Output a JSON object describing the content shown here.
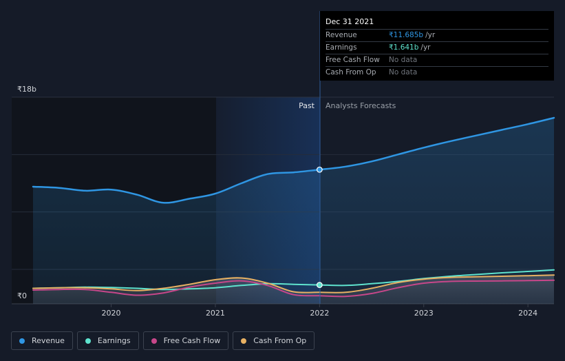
{
  "chart_data": {
    "type": "line",
    "y_unit_labels": {
      "top": "₹18b",
      "bottom": "₹0"
    },
    "ylim": [
      0,
      18
    ],
    "xlim": [
      2019.25,
      2024.25
    ],
    "x_ticks": [
      {
        "value": 2020,
        "label": "2020"
      },
      {
        "value": 2021,
        "label": "2021"
      },
      {
        "value": 2022,
        "label": "2022"
      },
      {
        "value": 2023,
        "label": "2023"
      },
      {
        "value": 2024,
        "label": "2024"
      }
    ],
    "divider_x": 2022.0,
    "past_label": "Past",
    "forecast_label": "Analysts Forecasts",
    "series": [
      {
        "name": "Revenue",
        "color": "#2f96e3",
        "area": true,
        "points": [
          [
            2019.25,
            10.2
          ],
          [
            2019.5,
            10.1
          ],
          [
            2019.75,
            9.85
          ],
          [
            2020.0,
            9.95
          ],
          [
            2020.25,
            9.5
          ],
          [
            2020.5,
            8.8
          ],
          [
            2020.75,
            9.15
          ],
          [
            2021.0,
            9.6
          ],
          [
            2021.25,
            10.5
          ],
          [
            2021.5,
            11.3
          ],
          [
            2021.75,
            11.45
          ],
          [
            2022.0,
            11.685
          ],
          [
            2022.25,
            11.95
          ],
          [
            2022.5,
            12.4
          ],
          [
            2022.75,
            13.0
          ],
          [
            2023.0,
            13.6
          ],
          [
            2023.25,
            14.15
          ],
          [
            2023.5,
            14.65
          ],
          [
            2023.75,
            15.15
          ],
          [
            2024.0,
            15.65
          ],
          [
            2024.25,
            16.2
          ]
        ]
      },
      {
        "name": "Earnings",
        "color": "#5fe3ce",
        "area": false,
        "points": [
          [
            2019.25,
            1.35
          ],
          [
            2019.5,
            1.4
          ],
          [
            2019.75,
            1.45
          ],
          [
            2020.0,
            1.42
          ],
          [
            2020.25,
            1.35
          ],
          [
            2020.5,
            1.25
          ],
          [
            2020.75,
            1.3
          ],
          [
            2021.0,
            1.4
          ],
          [
            2021.25,
            1.6
          ],
          [
            2021.5,
            1.75
          ],
          [
            2021.75,
            1.7
          ],
          [
            2022.0,
            1.641
          ],
          [
            2022.25,
            1.6
          ],
          [
            2022.5,
            1.75
          ],
          [
            2022.75,
            1.95
          ],
          [
            2023.0,
            2.2
          ],
          [
            2023.25,
            2.4
          ],
          [
            2023.5,
            2.55
          ],
          [
            2023.75,
            2.7
          ],
          [
            2024.0,
            2.82
          ],
          [
            2024.25,
            2.95
          ]
        ]
      },
      {
        "name": "Free Cash Flow",
        "color": "#c7478a",
        "area": false,
        "points": [
          [
            2019.25,
            1.2
          ],
          [
            2019.5,
            1.25
          ],
          [
            2019.75,
            1.25
          ],
          [
            2020.0,
            1.0
          ],
          [
            2020.25,
            0.75
          ],
          [
            2020.5,
            0.95
          ],
          [
            2020.75,
            1.45
          ],
          [
            2021.0,
            1.8
          ],
          [
            2021.25,
            2.0
          ],
          [
            2021.5,
            1.6
          ],
          [
            2021.75,
            0.8
          ],
          [
            2022.0,
            0.7
          ],
          [
            2022.25,
            0.65
          ],
          [
            2022.5,
            0.9
          ],
          [
            2022.75,
            1.4
          ],
          [
            2023.0,
            1.8
          ],
          [
            2023.25,
            1.95
          ],
          [
            2023.5,
            1.98
          ],
          [
            2023.75,
            2.0
          ],
          [
            2024.0,
            2.02
          ],
          [
            2024.25,
            2.05
          ]
        ]
      },
      {
        "name": "Cash From Op",
        "color": "#e8b163",
        "area": false,
        "points": [
          [
            2019.25,
            1.35
          ],
          [
            2019.5,
            1.4
          ],
          [
            2019.75,
            1.4
          ],
          [
            2020.0,
            1.3
          ],
          [
            2020.25,
            1.15
          ],
          [
            2020.5,
            1.35
          ],
          [
            2020.75,
            1.7
          ],
          [
            2021.0,
            2.1
          ],
          [
            2021.25,
            2.25
          ],
          [
            2021.5,
            1.8
          ],
          [
            2021.75,
            1.05
          ],
          [
            2022.0,
            1.0
          ],
          [
            2022.25,
            1.0
          ],
          [
            2022.5,
            1.35
          ],
          [
            2022.75,
            1.85
          ],
          [
            2023.0,
            2.15
          ],
          [
            2023.25,
            2.3
          ],
          [
            2023.5,
            2.35
          ],
          [
            2023.75,
            2.4
          ],
          [
            2024.0,
            2.45
          ],
          [
            2024.25,
            2.5
          ]
        ]
      }
    ]
  },
  "tooltip": {
    "date": "Dec 31 2021",
    "rows": [
      {
        "label": "Revenue",
        "value": "₹11.685b",
        "unit": "/yr",
        "color": "#2f96e3"
      },
      {
        "label": "Earnings",
        "value": "₹1.641b",
        "unit": "/yr",
        "color": "#5fe3ce"
      },
      {
        "label": "Free Cash Flow",
        "value": "No data",
        "unit": "",
        "color": ""
      },
      {
        "label": "Cash From Op",
        "value": "No data",
        "unit": "",
        "color": ""
      }
    ]
  },
  "legend": [
    {
      "label": "Revenue",
      "color": "#2f96e3"
    },
    {
      "label": "Earnings",
      "color": "#5fe3ce"
    },
    {
      "label": "Free Cash Flow",
      "color": "#c7478a"
    },
    {
      "label": "Cash From Op",
      "color": "#e8b163"
    }
  ]
}
